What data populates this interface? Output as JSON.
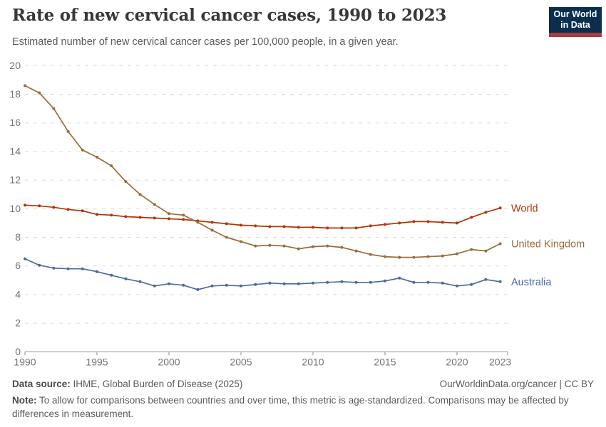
{
  "header": {
    "title": "Rate of new cervical cancer cases, 1990 to 2023",
    "subtitle": "Estimated number of new cervical cancer cases per 100,000 people, in a given year.",
    "logo": {
      "line1": "Our World",
      "line2": "in Data",
      "bg_color": "#0b2e4f",
      "accent_color": "#a93c3c"
    }
  },
  "chart_data": {
    "type": "line",
    "title": "Rate of new cervical cancer cases, 1990 to 2023",
    "xlabel": "",
    "ylabel": "",
    "x": [
      1990,
      1991,
      1992,
      1993,
      1994,
      1995,
      1996,
      1997,
      1998,
      1999,
      2000,
      2001,
      2002,
      2003,
      2004,
      2005,
      2006,
      2007,
      2008,
      2009,
      2010,
      2011,
      2012,
      2013,
      2014,
      2015,
      2016,
      2017,
      2018,
      2019,
      2020,
      2021,
      2022,
      2023
    ],
    "series": [
      {
        "name": "World",
        "color": "#b13507",
        "values": [
          10.25,
          10.2,
          10.1,
          9.95,
          9.85,
          9.6,
          9.55,
          9.45,
          9.4,
          9.35,
          9.3,
          9.25,
          9.15,
          9.05,
          8.95,
          8.85,
          8.8,
          8.75,
          8.75,
          8.7,
          8.7,
          8.65,
          8.65,
          8.65,
          8.8,
          8.9,
          9.0,
          9.1,
          9.1,
          9.05,
          9.0,
          9.4,
          9.75,
          10.05
        ]
      },
      {
        "name": "United Kingdom",
        "color": "#996d39",
        "values": [
          18.6,
          18.1,
          17.0,
          15.4,
          14.1,
          13.6,
          13.0,
          11.9,
          11.0,
          10.3,
          9.65,
          9.55,
          9.05,
          8.5,
          8.0,
          7.7,
          7.4,
          7.45,
          7.4,
          7.2,
          7.35,
          7.4,
          7.3,
          7.05,
          6.8,
          6.65,
          6.6,
          6.6,
          6.65,
          6.7,
          6.85,
          7.15,
          7.05,
          7.55
        ]
      },
      {
        "name": "Australia",
        "color": "#4c6a9c",
        "values": [
          6.5,
          6.05,
          5.85,
          5.8,
          5.8,
          5.6,
          5.35,
          5.1,
          4.9,
          4.6,
          4.75,
          4.65,
          4.35,
          4.6,
          4.65,
          4.6,
          4.7,
          4.8,
          4.75,
          4.75,
          4.8,
          4.85,
          4.9,
          4.85,
          4.85,
          4.95,
          5.15,
          4.85,
          4.85,
          4.8,
          4.6,
          4.7,
          5.05,
          4.9
        ]
      }
    ],
    "ylim": [
      0,
      20
    ],
    "yticks": [
      0,
      2,
      4,
      6,
      8,
      10,
      12,
      14,
      16,
      18,
      20
    ],
    "xticks": [
      1990,
      1995,
      2000,
      2005,
      2010,
      2015,
      2020,
      2023
    ],
    "grid": "horizontal-dashed",
    "legend_position": "right-of-line-ends",
    "axis_color": "#8f8f8f",
    "grid_color": "#dcdcdc",
    "tick_label_color": "#737373"
  },
  "footer": {
    "datasource_label": "Data source:",
    "datasource_value": " IHME, Global Burden of Disease (2025)",
    "link": "OurWorldinData.org/cancer | CC BY",
    "note_label": "Note:",
    "note_value": " To allow for comparisons between countries and over time, this metric is age-standardized. Comparisons may be affected by differences in measurement."
  }
}
